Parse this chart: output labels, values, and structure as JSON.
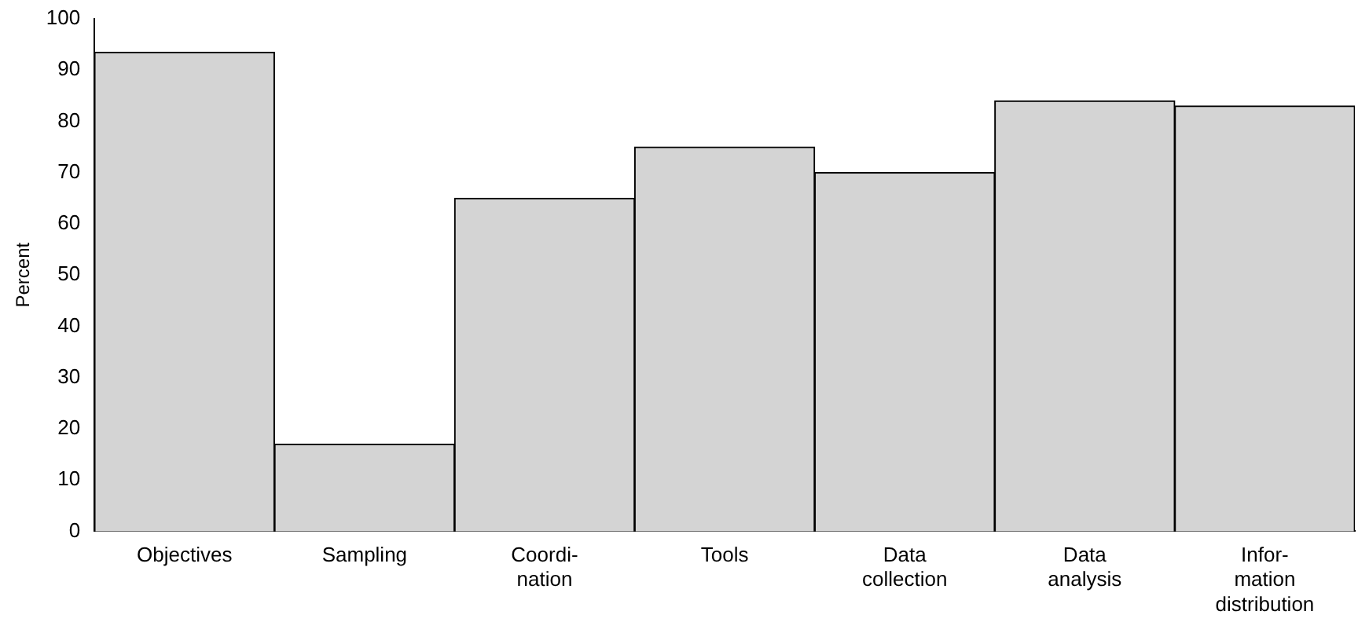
{
  "chart_data": {
    "type": "bar",
    "ylabel": "Percent",
    "categories": [
      "Objectives",
      "Sampling",
      "Coordi-\nnation",
      "Tools",
      "Data\ncollection",
      "Data\nanalysis",
      "Infor-\nmation\ndistribution"
    ],
    "values": [
      93.5,
      17,
      65,
      75,
      70,
      84,
      83
    ],
    "color": "#d4d4d4",
    "ylim": [
      0,
      100
    ],
    "yticks": [
      0,
      10,
      20,
      30,
      40,
      50,
      60,
      70,
      80,
      90,
      100
    ],
    "grid": false,
    "legend": false
  }
}
